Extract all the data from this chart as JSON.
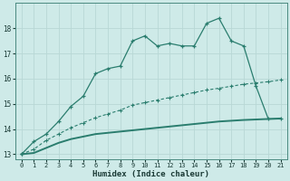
{
  "xlabel": "Humidex (Indice chaleur)",
  "x": [
    0,
    1,
    2,
    3,
    4,
    5,
    6,
    7,
    8,
    9,
    10,
    11,
    12,
    13,
    14,
    15,
    16,
    17,
    18,
    19,
    20,
    21
  ],
  "upper_line": [
    13.0,
    13.5,
    13.8,
    14.3,
    14.9,
    15.3,
    16.2,
    16.4,
    16.5,
    17.5,
    17.7,
    17.3,
    17.4,
    17.3,
    17.3,
    18.2,
    18.4,
    17.5,
    17.3,
    15.7,
    14.4,
    14.4
  ],
  "mid_line": [
    13.0,
    13.2,
    13.55,
    13.8,
    14.05,
    14.25,
    14.45,
    14.6,
    14.75,
    14.95,
    15.05,
    15.15,
    15.25,
    15.35,
    15.45,
    15.55,
    15.62,
    15.7,
    15.78,
    15.83,
    15.88,
    15.95
  ],
  "low_line": [
    13.0,
    13.05,
    13.25,
    13.45,
    13.6,
    13.7,
    13.8,
    13.85,
    13.9,
    13.95,
    14.0,
    14.05,
    14.1,
    14.15,
    14.2,
    14.25,
    14.3,
    14.33,
    14.36,
    14.38,
    14.4,
    14.42
  ],
  "line_color": "#2a7d6e",
  "bg_color": "#ceeae8",
  "grid_color": "#b8d8d5",
  "ylim": [
    12.8,
    19.0
  ],
  "xlim": [
    -0.5,
    21.5
  ],
  "yticks": [
    13,
    14,
    15,
    16,
    17,
    18
  ],
  "xticks": [
    0,
    1,
    2,
    3,
    4,
    5,
    6,
    7,
    8,
    9,
    10,
    11,
    12,
    13,
    14,
    15,
    16,
    17,
    18,
    19,
    20,
    21
  ]
}
